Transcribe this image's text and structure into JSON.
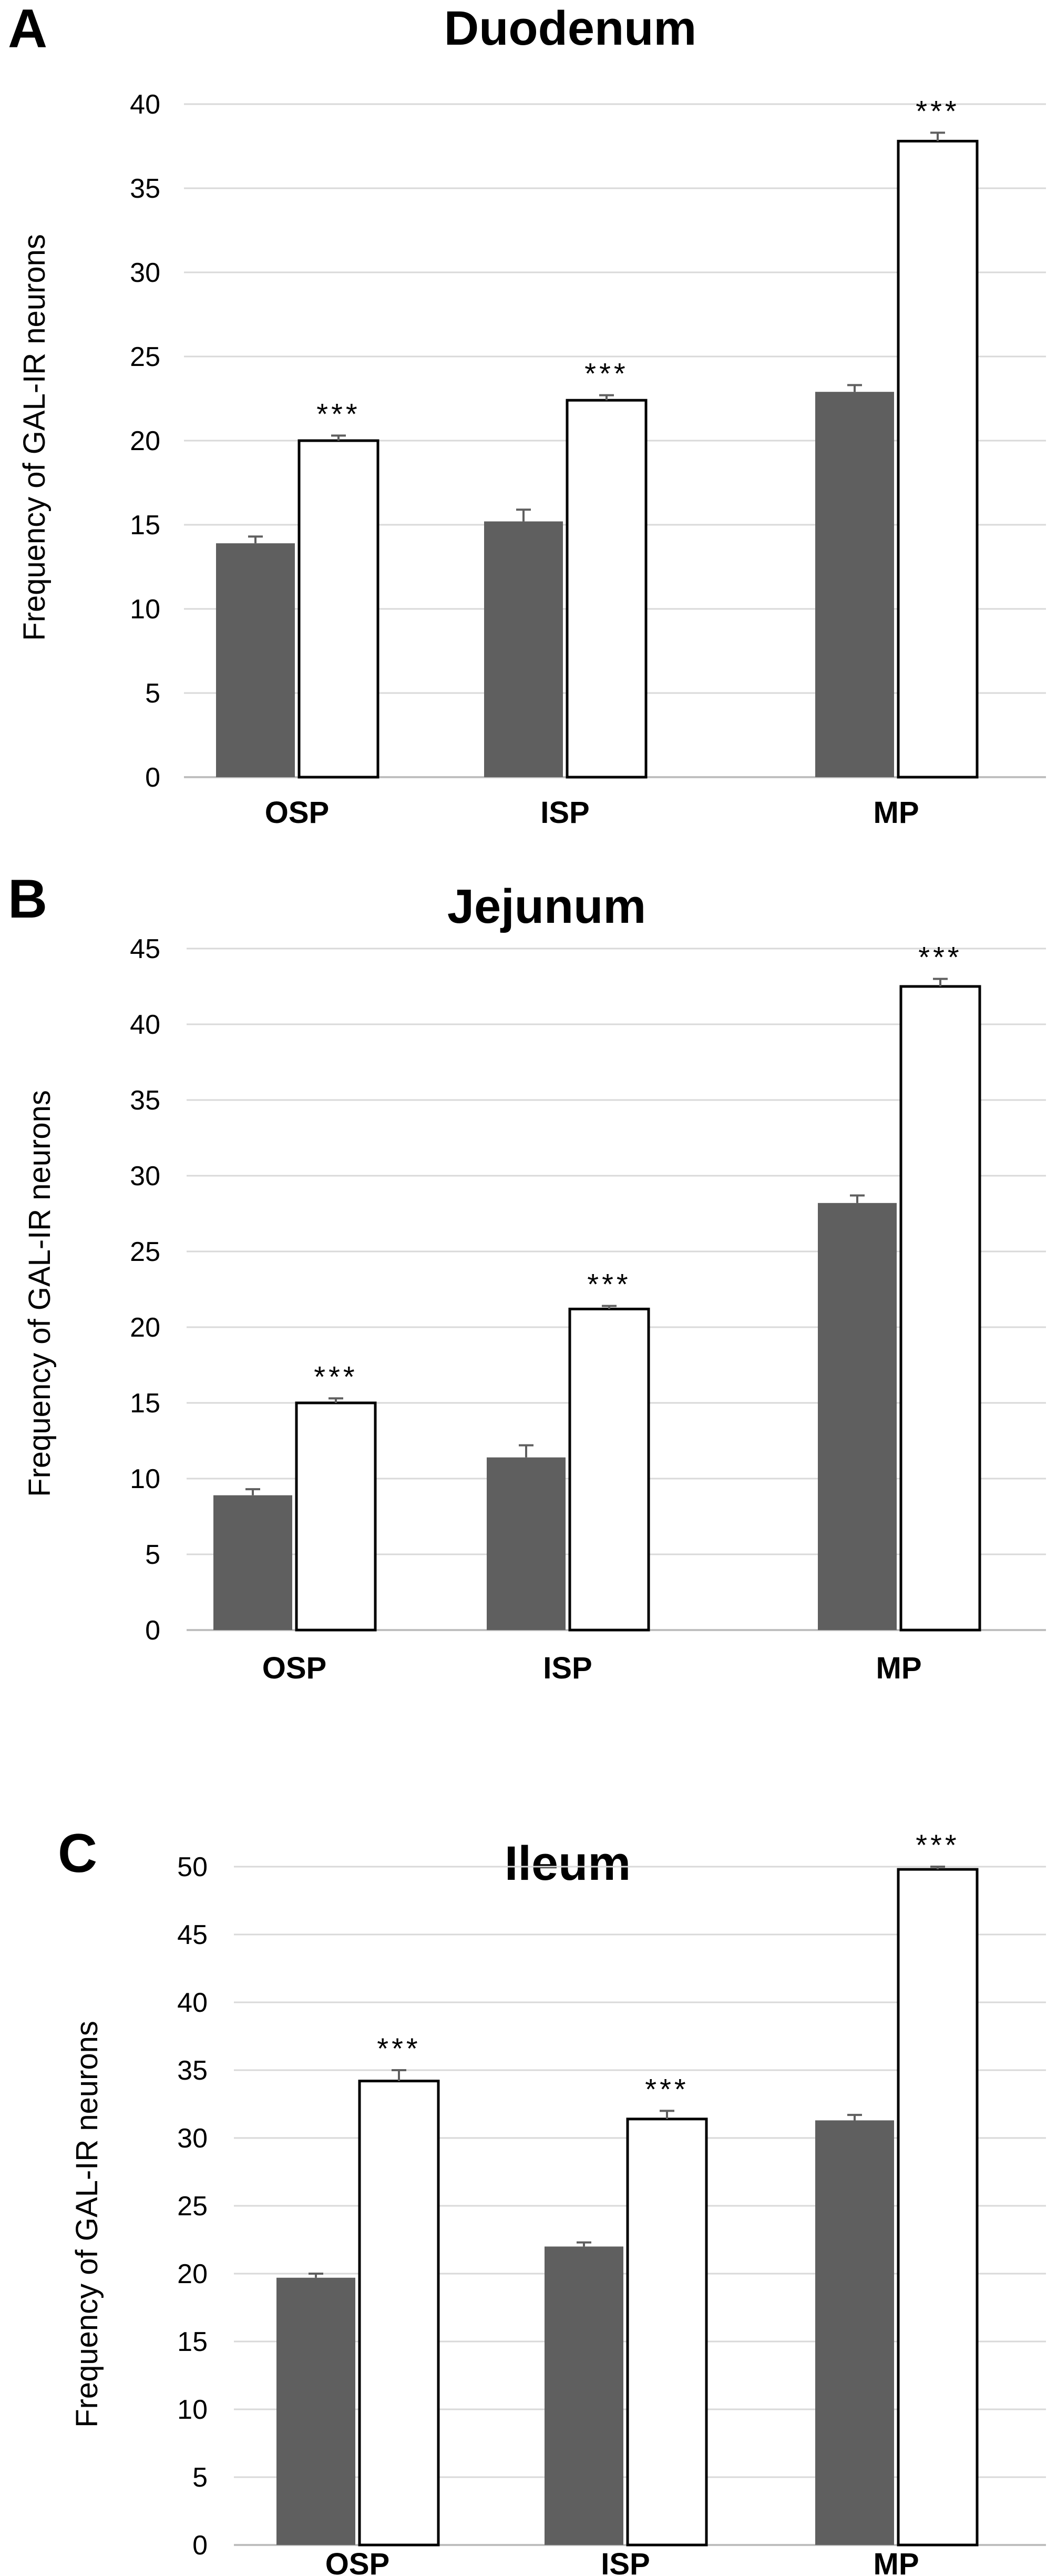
{
  "chart_data": [
    {
      "type": "bar",
      "panel": "A",
      "title": "Duodenum",
      "xlabel": "",
      "ylabel": "Frequency of GAL-IR neurons",
      "categories": [
        "OSP",
        "ISP",
        "MP"
      ],
      "ylim": [
        0,
        40
      ],
      "ytick_step": 5,
      "yticks": [
        "0",
        "5",
        "10",
        "15",
        "20",
        "25",
        "30",
        "35",
        "40"
      ],
      "grid": true,
      "series": [
        {
          "name": "gray",
          "color": "#5f5f5f",
          "values": [
            13.9,
            15.2,
            22.9
          ],
          "errors": [
            0.4,
            0.7,
            0.4
          ]
        },
        {
          "name": "white",
          "color": "#ffffff",
          "values": [
            20.0,
            22.4,
            37.8
          ],
          "errors": [
            0.3,
            0.3,
            0.5
          ]
        }
      ],
      "annotations": [
        "***",
        "***",
        "***"
      ]
    },
    {
      "type": "bar",
      "panel": "B",
      "title": "Jejunum",
      "xlabel": "",
      "ylabel": "Frequency of GAL-IR neurons",
      "categories": [
        "OSP",
        "ISP",
        "MP"
      ],
      "ylim": [
        0,
        45
      ],
      "ytick_step": 5,
      "yticks": [
        "0",
        "5",
        "10",
        "15",
        "20",
        "25",
        "30",
        "35",
        "40",
        "45"
      ],
      "grid": true,
      "series": [
        {
          "name": "gray",
          "color": "#5f5f5f",
          "values": [
            8.9,
            11.4,
            28.2
          ],
          "errors": [
            0.4,
            0.8,
            0.5
          ]
        },
        {
          "name": "white",
          "color": "#ffffff",
          "values": [
            15.0,
            21.2,
            42.5
          ],
          "errors": [
            0.3,
            0.2,
            0.5
          ]
        }
      ],
      "annotations": [
        "***",
        "***",
        "***"
      ]
    },
    {
      "type": "bar",
      "panel": "C",
      "title": "Ileum",
      "xlabel": "",
      "ylabel": "Frequency of GAL-IR neurons",
      "categories": [
        "OSP",
        "ISP",
        "MP"
      ],
      "ylim": [
        0,
        50
      ],
      "ytick_step": 5,
      "yticks": [
        "0",
        "5",
        "10",
        "15",
        "20",
        "25",
        "30",
        "35",
        "40",
        "45",
        "50"
      ],
      "grid": true,
      "series": [
        {
          "name": "gray",
          "color": "#5f5f5f",
          "values": [
            19.7,
            22.0,
            31.3
          ],
          "errors": [
            0.3,
            0.3,
            0.4
          ]
        },
        {
          "name": "white",
          "color": "#ffffff",
          "values": [
            34.2,
            31.4,
            49.8
          ],
          "errors": [
            0.8,
            0.6,
            0.2
          ]
        }
      ],
      "annotations": [
        "***",
        "***",
        "***"
      ]
    }
  ]
}
